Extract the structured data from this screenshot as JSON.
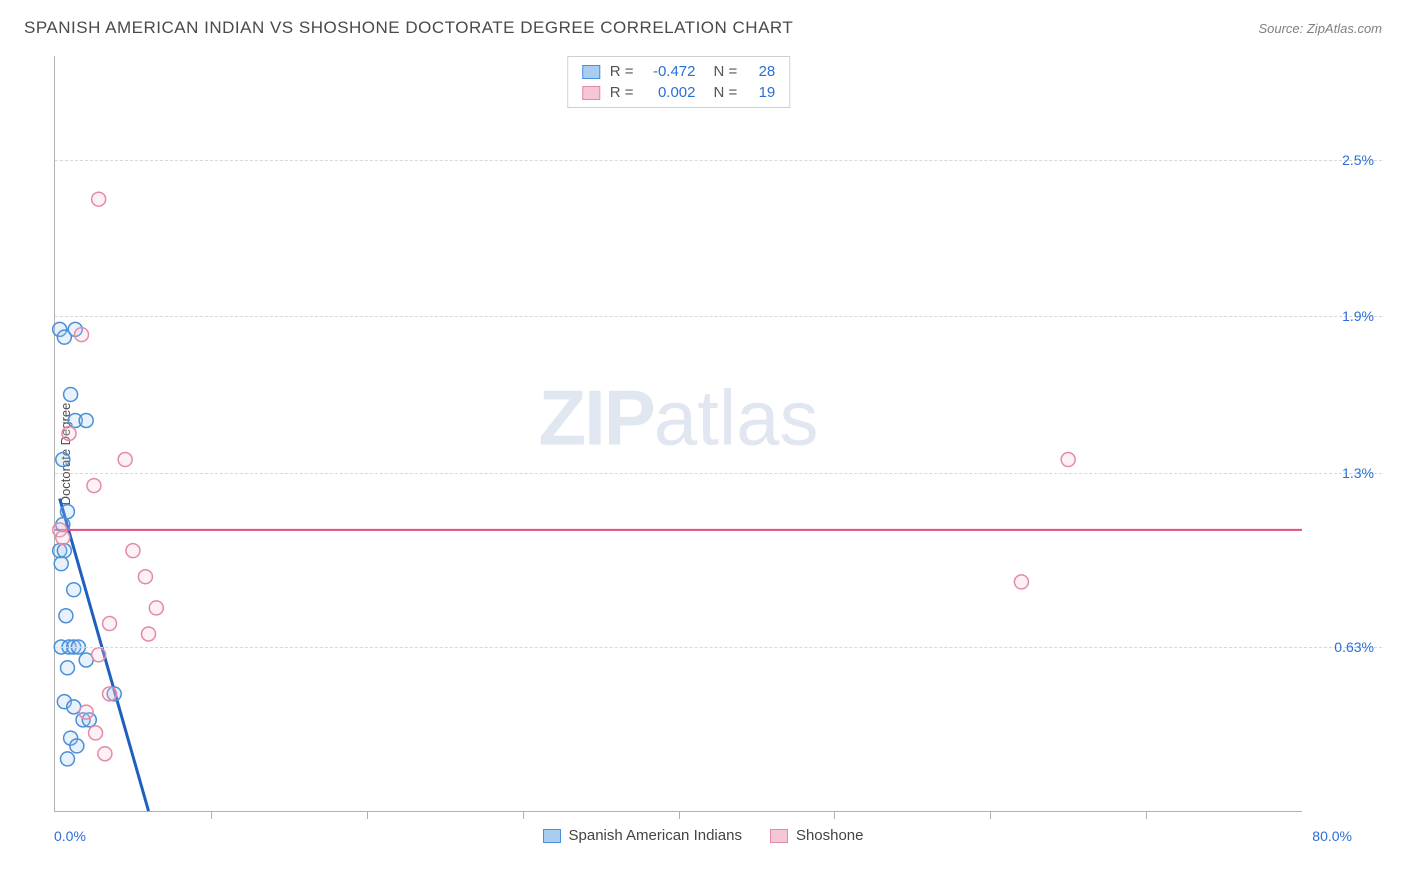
{
  "title": "SPANISH AMERICAN INDIAN VS SHOSHONE DOCTORATE DEGREE CORRELATION CHART",
  "source": "Source: ZipAtlas.com",
  "watermark": {
    "bold": "ZIP",
    "rest": "atlas"
  },
  "chart": {
    "type": "scatter",
    "ylabel": "Doctorate Degree",
    "xlim": [
      0,
      80
    ],
    "ylim": [
      0,
      2.9
    ],
    "xlim_labels": [
      "0.0%",
      "80.0%"
    ],
    "ytick_values": [
      0.63,
      1.3,
      1.9,
      2.5
    ],
    "ytick_labels": [
      "0.63%",
      "1.3%",
      "1.9%",
      "2.5%"
    ],
    "xtick_values": [
      10,
      20,
      30,
      40,
      50,
      60,
      70
    ],
    "grid_color": "#d8d8d8",
    "axis_color": "#b0b0b0",
    "background_color": "#ffffff",
    "marker_radius": 7,
    "marker_stroke_width": 1.5,
    "marker_fill_opacity": 0.25,
    "series": [
      {
        "name": "Spanish American Indians",
        "color_stroke": "#4a8fd8",
        "color_fill": "#a8cdf0",
        "R": "-0.472",
        "N": "28",
        "trend": {
          "x1": 0.3,
          "y1": 1.2,
          "x2": 6.0,
          "y2": 0.0,
          "color": "#1f5fbf",
          "width": 3
        },
        "points": [
          [
            0.3,
            1.85
          ],
          [
            0.6,
            1.82
          ],
          [
            1.3,
            1.85
          ],
          [
            1.0,
            1.6
          ],
          [
            1.3,
            1.5
          ],
          [
            2.0,
            1.5
          ],
          [
            0.5,
            1.35
          ],
          [
            0.8,
            1.15
          ],
          [
            0.5,
            1.1
          ],
          [
            0.3,
            1.0
          ],
          [
            0.6,
            1.0
          ],
          [
            0.4,
            0.95
          ],
          [
            1.2,
            0.85
          ],
          [
            0.7,
            0.75
          ],
          [
            0.4,
            0.63
          ],
          [
            0.9,
            0.63
          ],
          [
            1.2,
            0.63
          ],
          [
            1.5,
            0.63
          ],
          [
            2.0,
            0.58
          ],
          [
            0.8,
            0.55
          ],
          [
            3.8,
            0.45
          ],
          [
            0.6,
            0.42
          ],
          [
            1.2,
            0.4
          ],
          [
            1.8,
            0.35
          ],
          [
            2.2,
            0.35
          ],
          [
            1.0,
            0.28
          ],
          [
            1.4,
            0.25
          ],
          [
            0.8,
            0.2
          ]
        ]
      },
      {
        "name": "Shoshone",
        "color_stroke": "#e589a8",
        "color_fill": "#f5c6d6",
        "R": "0.002",
        "N": "19",
        "trend": {
          "x1": 0,
          "y1": 1.08,
          "x2": 80,
          "y2": 1.08,
          "color": "#e64b87",
          "width": 2
        },
        "points": [
          [
            2.8,
            2.35
          ],
          [
            1.7,
            1.83
          ],
          [
            0.9,
            1.45
          ],
          [
            4.5,
            1.35
          ],
          [
            2.5,
            1.25
          ],
          [
            65.0,
            1.35
          ],
          [
            0.3,
            1.08
          ],
          [
            0.5,
            1.05
          ],
          [
            5.0,
            1.0
          ],
          [
            5.8,
            0.9
          ],
          [
            62.0,
            0.88
          ],
          [
            6.5,
            0.78
          ],
          [
            3.5,
            0.72
          ],
          [
            6.0,
            0.68
          ],
          [
            2.8,
            0.6
          ],
          [
            3.5,
            0.45
          ],
          [
            2.0,
            0.38
          ],
          [
            2.6,
            0.3
          ],
          [
            3.2,
            0.22
          ]
        ]
      }
    ]
  },
  "stats_box": {
    "R_label": "R =",
    "N_label": "N ="
  }
}
